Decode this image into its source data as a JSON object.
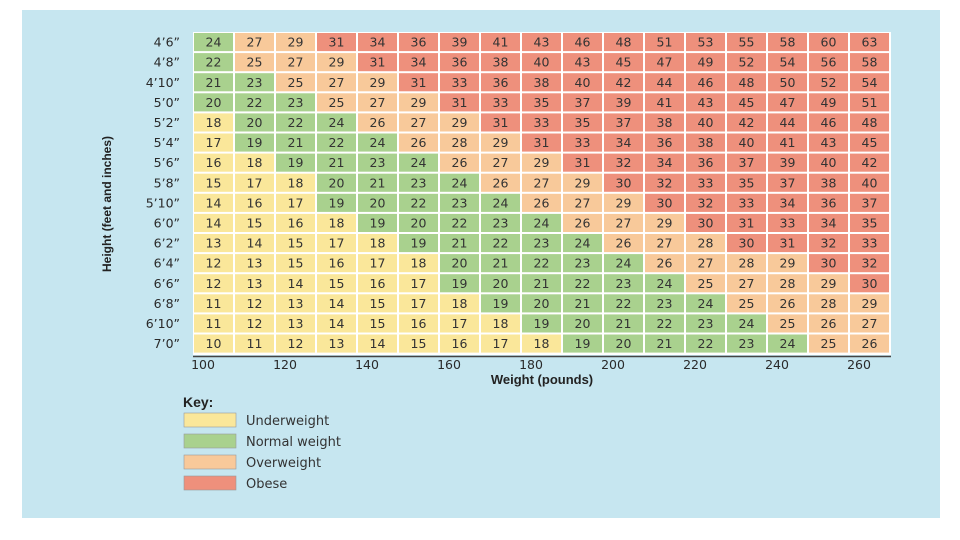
{
  "chart_data": {
    "type": "heatmap",
    "xlabel": "Weight (pounds)",
    "ylabel": "Height (feet and inches)",
    "x_ticks": [
      "100",
      "120",
      "140",
      "160",
      "180",
      "200",
      "220",
      "240",
      "260"
    ],
    "rows": [
      "4’6”",
      "4’8”",
      "4’10”",
      "5’0”",
      "5’2”",
      "5’4”",
      "5’6”",
      "5’8”",
      "5’10”",
      "6’0”",
      "6’2”",
      "6’4”",
      "6’6”",
      "6’8”",
      "6’10”",
      "7’0”"
    ],
    "values": [
      [
        24,
        27,
        29,
        31,
        34,
        36,
        39,
        41,
        43,
        46,
        48,
        51,
        53,
        55,
        58,
        60,
        63
      ],
      [
        22,
        25,
        27,
        29,
        31,
        34,
        36,
        38,
        40,
        43,
        45,
        47,
        49,
        52,
        54,
        56,
        58
      ],
      [
        21,
        23,
        25,
        27,
        29,
        31,
        33,
        36,
        38,
        40,
        42,
        44,
        46,
        48,
        50,
        52,
        54
      ],
      [
        20,
        22,
        23,
        25,
        27,
        29,
        31,
        33,
        35,
        37,
        39,
        41,
        43,
        45,
        47,
        49,
        51
      ],
      [
        18,
        20,
        22,
        24,
        26,
        27,
        29,
        31,
        33,
        35,
        37,
        38,
        40,
        42,
        44,
        46,
        48
      ],
      [
        17,
        19,
        21,
        22,
        24,
        26,
        28,
        29,
        31,
        33,
        34,
        36,
        38,
        40,
        41,
        43,
        45
      ],
      [
        16,
        18,
        19,
        21,
        23,
        24,
        26,
        27,
        29,
        31,
        32,
        34,
        36,
        37,
        39,
        40,
        42
      ],
      [
        15,
        17,
        18,
        20,
        21,
        23,
        24,
        26,
        27,
        29,
        30,
        32,
        33,
        35,
        37,
        38,
        40
      ],
      [
        14,
        16,
        17,
        19,
        20,
        22,
        23,
        24,
        26,
        27,
        29,
        30,
        32,
        33,
        34,
        36,
        37
      ],
      [
        14,
        15,
        16,
        18,
        19,
        20,
        22,
        23,
        24,
        26,
        27,
        29,
        30,
        31,
        33,
        34,
        35
      ],
      [
        13,
        14,
        15,
        17,
        18,
        19,
        21,
        22,
        23,
        24,
        26,
        27,
        28,
        30,
        31,
        32,
        33
      ],
      [
        12,
        13,
        15,
        16,
        17,
        18,
        20,
        21,
        22,
        23,
        24,
        26,
        27,
        28,
        29,
        30,
        32
      ],
      [
        12,
        13,
        14,
        15,
        16,
        17,
        19,
        20,
        21,
        22,
        23,
        24,
        25,
        27,
        28,
        29,
        30
      ],
      [
        11,
        12,
        13,
        14,
        15,
        17,
        18,
        19,
        20,
        21,
        22,
        23,
        24,
        25,
        26,
        28,
        29
      ],
      [
        11,
        12,
        13,
        14,
        15,
        16,
        17,
        18,
        19,
        20,
        21,
        22,
        23,
        24,
        25,
        26,
        27
      ],
      [
        10,
        11,
        12,
        13,
        14,
        15,
        16,
        17,
        18,
        19,
        20,
        21,
        22,
        23,
        24,
        25,
        26
      ]
    ],
    "categories": [
      {
        "min": 0,
        "max": 18.9,
        "color": "#fae79a"
      },
      {
        "min": 19,
        "max": 24.9,
        "color": "#a9d18e"
      },
      {
        "min": 25,
        "max": 29.9,
        "color": "#f8c99a"
      },
      {
        "min": 30,
        "max": 999,
        "color": "#ee907c"
      }
    ],
    "key": {
      "title": "Key:",
      "items": [
        {
          "label": "Underweight",
          "color": "#fae79a"
        },
        {
          "label": "Normal weight",
          "color": "#a9d18e"
        },
        {
          "label": "Overweight",
          "color": "#f8c99a"
        },
        {
          "label": "Obese",
          "color": "#ee907c"
        }
      ]
    }
  }
}
